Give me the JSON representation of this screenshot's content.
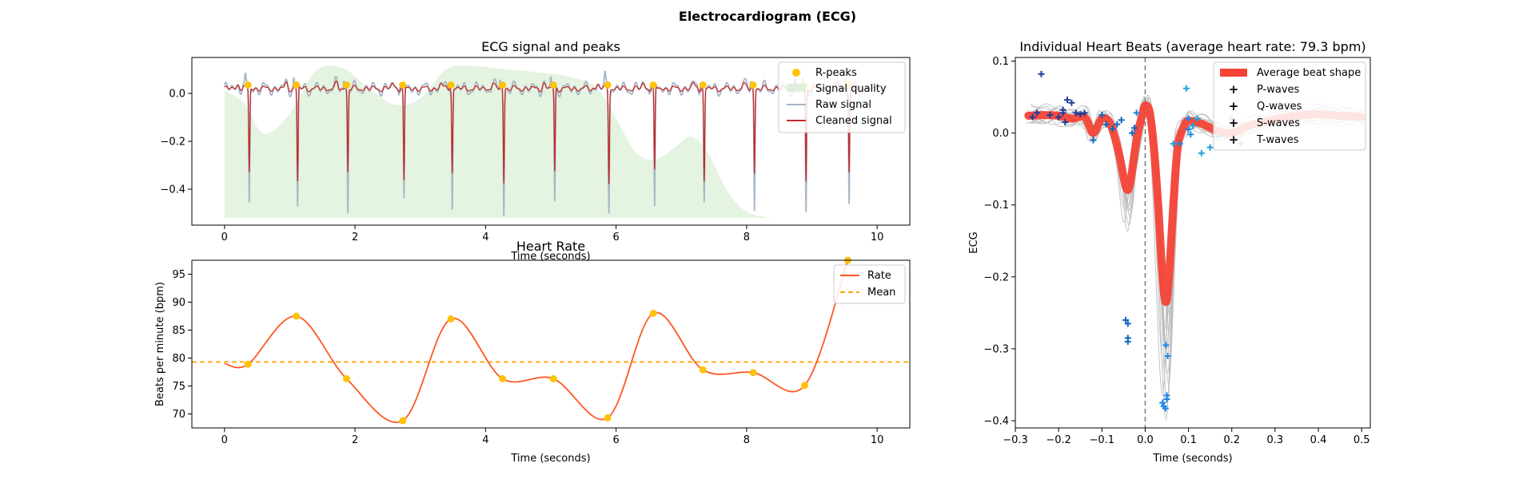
{
  "figure": {
    "title": "Electrocardiogram (ECG)"
  },
  "chart_data": [
    {
      "id": "ecg",
      "type": "line",
      "title": "ECG signal and peaks",
      "xlabel": "Time (seconds)",
      "ylabel": "",
      "xlim": [
        -0.5,
        10.5
      ],
      "ylim": [
        -0.55,
        0.15
      ],
      "xticks": [
        0,
        2,
        4,
        6,
        8,
        10
      ],
      "yticks": [
        0.0,
        -0.2,
        -0.4
      ],
      "grid": false,
      "legend": {
        "position": "top-right",
        "entries": [
          "R-peaks",
          "Signal quality",
          "Raw signal",
          "Cleaned signal"
        ]
      },
      "colors": {
        "rpeaks": "#FFC20A",
        "quality": "#DFF0DA",
        "raw": "#A7B6C5",
        "clean": "#C12B2B"
      },
      "r_peaks": [
        0.36,
        1.1,
        1.87,
        2.73,
        3.47,
        4.26,
        5.04,
        5.87,
        6.57,
        7.33,
        8.1,
        8.89,
        9.55
      ],
      "signal_quality": [
        [
          0,
          0.83
        ],
        [
          0.3,
          0.75
        ],
        [
          0.6,
          0.55
        ],
        [
          1.0,
          0.68
        ],
        [
          1.4,
          0.96
        ],
        [
          1.8,
          0.98
        ],
        [
          2.2,
          0.85
        ],
        [
          2.6,
          0.74
        ],
        [
          3.0,
          0.78
        ],
        [
          3.4,
          0.97
        ],
        [
          3.8,
          0.99
        ],
        [
          4.3,
          0.97
        ],
        [
          4.8,
          0.95
        ],
        [
          5.3,
          0.92
        ],
        [
          5.7,
          0.85
        ],
        [
          6.0,
          0.65
        ],
        [
          6.3,
          0.43
        ],
        [
          6.6,
          0.38
        ],
        [
          6.9,
          0.46
        ],
        [
          7.15,
          0.53
        ],
        [
          7.4,
          0.43
        ],
        [
          7.7,
          0.18
        ],
        [
          8.0,
          0.04
        ],
        [
          8.4,
          0.0
        ]
      ]
    },
    {
      "id": "rate",
      "type": "line",
      "title": "Heart Rate",
      "xlabel": "Time (seconds)",
      "ylabel": "Beats per minute (bpm)",
      "xlim": [
        -0.5,
        10.5
      ],
      "ylim": [
        67.5,
        97.5
      ],
      "xticks": [
        0,
        2,
        4,
        6,
        8,
        10
      ],
      "yticks": [
        70,
        75,
        80,
        85,
        90,
        95
      ],
      "grid": false,
      "legend": {
        "position": "top-right",
        "entries": [
          "Rate",
          "Mean"
        ]
      },
      "colors": {
        "rate": "#FF5722",
        "mean": "#FFA500",
        "points": "#FFC20A"
      },
      "points": [
        [
          0.36,
          78.9
        ],
        [
          1.1,
          87.5
        ],
        [
          1.87,
          76.3
        ],
        [
          2.73,
          68.8
        ],
        [
          3.47,
          87
        ],
        [
          4.26,
          76.3
        ],
        [
          5.04,
          76.3
        ],
        [
          5.87,
          69.3
        ],
        [
          6.57,
          88
        ],
        [
          7.33,
          77.9
        ],
        [
          8.1,
          77.4
        ],
        [
          8.89,
          75.1
        ],
        [
          9.55,
          97.5
        ]
      ],
      "mean": 79.3
    },
    {
      "id": "beats",
      "type": "line",
      "title": "Individual Heart Beats (average heart rate: 79.3 bpm)",
      "xlabel": "Time (seconds)",
      "ylabel": "ECG",
      "xlim": [
        -0.3,
        0.52
      ],
      "ylim": [
        -0.41,
        0.105
      ],
      "xticks": [
        -0.3,
        -0.2,
        -0.1,
        0.0,
        0.1,
        0.2,
        0.3,
        0.4,
        0.5
      ],
      "yticks": [
        0.1,
        0.0,
        -0.1,
        -0.2,
        -0.3,
        -0.4
      ],
      "grid": false,
      "legend": {
        "position": "top-right",
        "entries": [
          "Average beat shape",
          "P-waves",
          "Q-waves",
          "S-waves",
          "T-waves"
        ]
      },
      "colors": {
        "average": "#F44336",
        "p": "#1F3C9A",
        "q": "#1565C0",
        "s": "#1E88E5",
        "t": "#26A0DA",
        "beats": "#BDBDBD",
        "zero": "#777777"
      },
      "average_beat": [
        [
          -0.27,
          0.024
        ],
        [
          -0.23,
          0.025
        ],
        [
          -0.2,
          0.024
        ],
        [
          -0.17,
          0.02
        ],
        [
          -0.14,
          0.022
        ],
        [
          -0.12,
          0.0
        ],
        [
          -0.1,
          0.02
        ],
        [
          -0.08,
          0.012
        ],
        [
          -0.06,
          -0.03
        ],
        [
          -0.045,
          -0.075
        ],
        [
          -0.035,
          -0.07
        ],
        [
          -0.02,
          -0.01
        ],
        [
          -0.005,
          0.03
        ],
        [
          0.0,
          0.038
        ],
        [
          0.01,
          0.03
        ],
        [
          0.02,
          -0.02
        ],
        [
          0.03,
          -0.1
        ],
        [
          0.04,
          -0.2
        ],
        [
          0.048,
          -0.235
        ],
        [
          0.055,
          -0.2
        ],
        [
          0.065,
          -0.1
        ],
        [
          0.075,
          -0.02
        ],
        [
          0.09,
          0.01
        ],
        [
          0.1,
          0.017
        ],
        [
          0.13,
          0.013
        ],
        [
          0.17,
          0.002
        ],
        [
          0.2,
          0.0
        ],
        [
          0.25,
          0.012
        ],
        [
          0.3,
          0.019
        ],
        [
          0.35,
          0.024
        ],
        [
          0.4,
          0.026
        ],
        [
          0.45,
          0.024
        ],
        [
          0.5,
          0.022
        ]
      ],
      "p_waves": [
        [
          -0.26,
          0.022
        ],
        [
          -0.25,
          0.028
        ],
        [
          -0.24,
          0.082
        ],
        [
          -0.22,
          0.025
        ],
        [
          -0.2,
          0.022
        ],
        [
          -0.19,
          0.032
        ],
        [
          -0.19,
          0.028
        ],
        [
          -0.185,
          0.015
        ],
        [
          -0.18,
          0.046
        ],
        [
          -0.17,
          0.042
        ],
        [
          -0.16,
          0.028
        ],
        [
          -0.15,
          0.026
        ],
        [
          -0.14,
          0.028
        ]
      ],
      "q_waves": [
        [
          -0.12,
          -0.01
        ],
        [
          -0.1,
          0.025
        ],
        [
          -0.09,
          0.012
        ],
        [
          -0.075,
          0.006
        ],
        [
          -0.065,
          0.012
        ],
        [
          -0.055,
          0.018
        ],
        [
          -0.045,
          -0.26
        ],
        [
          -0.04,
          -0.265
        ],
        [
          -0.04,
          -0.285
        ],
        [
          -0.04,
          -0.29
        ],
        [
          -0.03,
          0.0
        ],
        [
          -0.025,
          0.007
        ]
      ],
      "s_waves": [
        [
          -0.02,
          0.028
        ],
        [
          0.04,
          -0.375
        ],
        [
          0.043,
          -0.38
        ],
        [
          0.047,
          -0.383
        ],
        [
          0.05,
          -0.365
        ],
        [
          0.05,
          -0.37
        ],
        [
          0.048,
          -0.295
        ],
        [
          0.052,
          -0.31
        ],
        [
          0.08,
          -0.015
        ],
        [
          0.1,
          0.02
        ],
        [
          0.1,
          0.005
        ],
        [
          0.105,
          -0.002
        ]
      ],
      "t_waves": [
        [
          0.065,
          -0.015
        ],
        [
          0.095,
          0.062
        ],
        [
          0.11,
          0.01
        ],
        [
          0.13,
          -0.028
        ],
        [
          0.15,
          -0.02
        ],
        [
          0.17,
          -0.005
        ],
        [
          0.2,
          0.02
        ],
        [
          0.22,
          -0.015
        ],
        [
          0.12,
          0.02
        ]
      ]
    }
  ]
}
